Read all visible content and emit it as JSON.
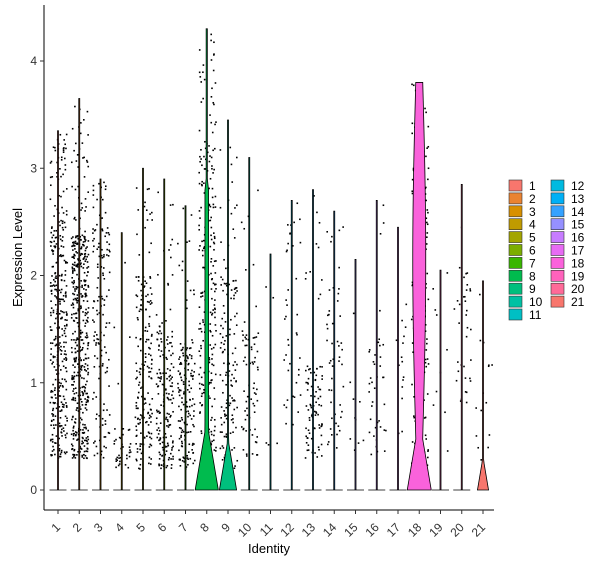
{
  "chart_data": {
    "type": "violin",
    "title": "",
    "xlabel": "Identity",
    "ylabel": "Expression Level",
    "ylim": [
      -0.2,
      4.4
    ],
    "yticks": [
      0,
      1,
      2,
      3,
      4
    ],
    "grid": false,
    "jitter_points": true,
    "legend_placement": "right",
    "legend_columns": 2,
    "categories": [
      "1",
      "2",
      "3",
      "4",
      "5",
      "6",
      "7",
      "8",
      "9",
      "10",
      "11",
      "12",
      "13",
      "14",
      "15",
      "16",
      "17",
      "18",
      "19",
      "20",
      "21"
    ],
    "colors": [
      "#F8766D",
      "#EA8331",
      "#D89000",
      "#C09B00",
      "#A3A500",
      "#7CAE00",
      "#39B600",
      "#00BB4E",
      "#00BF7D",
      "#00C1A3",
      "#00BFC4",
      "#00BAE0",
      "#00B0F6",
      "#35A2FF",
      "#9590FF",
      "#C77CFF",
      "#E76BF3",
      "#FA62DB",
      "#FF62BC",
      "#FF6A98",
      "#F8766D"
    ],
    "series": [
      {
        "name": "1",
        "max": 3.35,
        "violin_peak": 0.0,
        "points": 360,
        "main_range": [
          0.3,
          2.6
        ]
      },
      {
        "name": "2",
        "max": 3.65,
        "violin_peak": 0.0,
        "points": 480,
        "main_range": [
          0.3,
          2.4
        ]
      },
      {
        "name": "3",
        "max": 2.9,
        "violin_peak": 0.0,
        "points": 140,
        "main_range": [
          0.3,
          2.5
        ]
      },
      {
        "name": "4",
        "max": 2.4,
        "violin_peak": 0.0,
        "points": 40,
        "main_range": [
          0.2,
          0.6
        ]
      },
      {
        "name": "5",
        "max": 3.0,
        "violin_peak": 0.0,
        "points": 180,
        "main_range": [
          0.2,
          2.0
        ]
      },
      {
        "name": "6",
        "max": 2.9,
        "violin_peak": 0.0,
        "points": 170,
        "main_range": [
          0.2,
          1.5
        ]
      },
      {
        "name": "7",
        "max": 2.65,
        "violin_peak": 0.0,
        "points": 160,
        "main_range": [
          0.2,
          1.4
        ]
      },
      {
        "name": "8",
        "max": 4.3,
        "violin_peak": 0.6,
        "points": 260,
        "main_range": [
          0.3,
          3.3
        ]
      },
      {
        "name": "9",
        "max": 3.45,
        "violin_peak": 0.45,
        "points": 140,
        "main_range": [
          0.2,
          2.0
        ]
      },
      {
        "name": "10",
        "max": 3.1,
        "violin_peak": 0.0,
        "points": 70,
        "main_range": [
          0.3,
          1.5
        ]
      },
      {
        "name": "11",
        "max": 2.2,
        "violin_peak": 0.0,
        "points": 5,
        "main_range": [
          0.4,
          2.0
        ]
      },
      {
        "name": "12",
        "max": 2.7,
        "violin_peak": 0.0,
        "points": 40,
        "main_range": [
          0.6,
          2.3
        ]
      },
      {
        "name": "13",
        "max": 2.8,
        "violin_peak": 0.0,
        "points": 90,
        "main_range": [
          0.3,
          1.2
        ]
      },
      {
        "name": "14",
        "max": 2.6,
        "violin_peak": 0.0,
        "points": 50,
        "main_range": [
          0.4,
          2.1
        ]
      },
      {
        "name": "15",
        "max": 2.15,
        "violin_peak": 0.0,
        "points": 10,
        "main_range": [
          0.3,
          1.8
        ]
      },
      {
        "name": "16",
        "max": 2.7,
        "violin_peak": 0.0,
        "points": 40,
        "main_range": [
          0.3,
          1.5
        ]
      },
      {
        "name": "17",
        "max": 2.45,
        "violin_peak": 0.0,
        "points": 15,
        "main_range": [
          0.5,
          1.6
        ]
      },
      {
        "name": "18",
        "max": 3.8,
        "violin_peak": 0.45,
        "points": 240,
        "main_range": [
          0.2,
          3.5
        ]
      },
      {
        "name": "19",
        "max": 2.05,
        "violin_peak": 0.0,
        "points": 10,
        "main_range": [
          0.3,
          1.7
        ]
      },
      {
        "name": "20",
        "max": 2.85,
        "violin_peak": 0.0,
        "points": 35,
        "main_range": [
          0.8,
          2.1
        ]
      },
      {
        "name": "21",
        "max": 1.95,
        "violin_peak": 0.28,
        "points": 15,
        "main_range": [
          0.2,
          1.4
        ]
      }
    ]
  }
}
